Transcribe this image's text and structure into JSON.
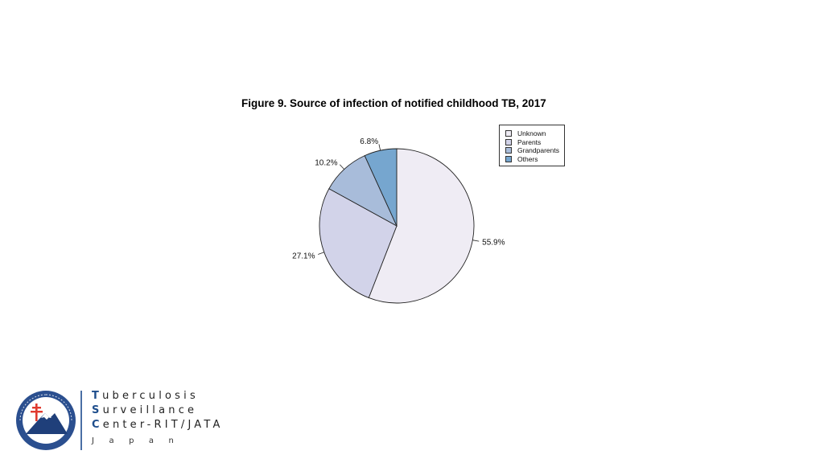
{
  "chart_data": {
    "type": "pie",
    "title": "Figure 9. Source of infection of notified childhood TB, 2017",
    "slices": [
      {
        "label": "Unknown",
        "value": 55.9,
        "display": "55.9%",
        "color": "#efecf4"
      },
      {
        "label": "Parents",
        "value": 27.1,
        "display": "27.1%",
        "color": "#d2d3e9"
      },
      {
        "label": "Grandparents",
        "value": 10.2,
        "display": "10.2%",
        "color": "#a8bcda"
      },
      {
        "label": "Others",
        "value": 6.8,
        "display": "6.8%",
        "color": "#76a6cf"
      }
    ],
    "start": "12 o'clock",
    "direction": "clockwise",
    "legend_position": "top-right"
  },
  "footer": {
    "org_line1_initial": "T",
    "org_line1_rest": "uberculosis",
    "org_line2_initial": "S",
    "org_line2_rest": "urveillance",
    "org_line3_initial": "C",
    "org_line3_rest": "enter-RIT/JATA",
    "country": "Japan"
  }
}
